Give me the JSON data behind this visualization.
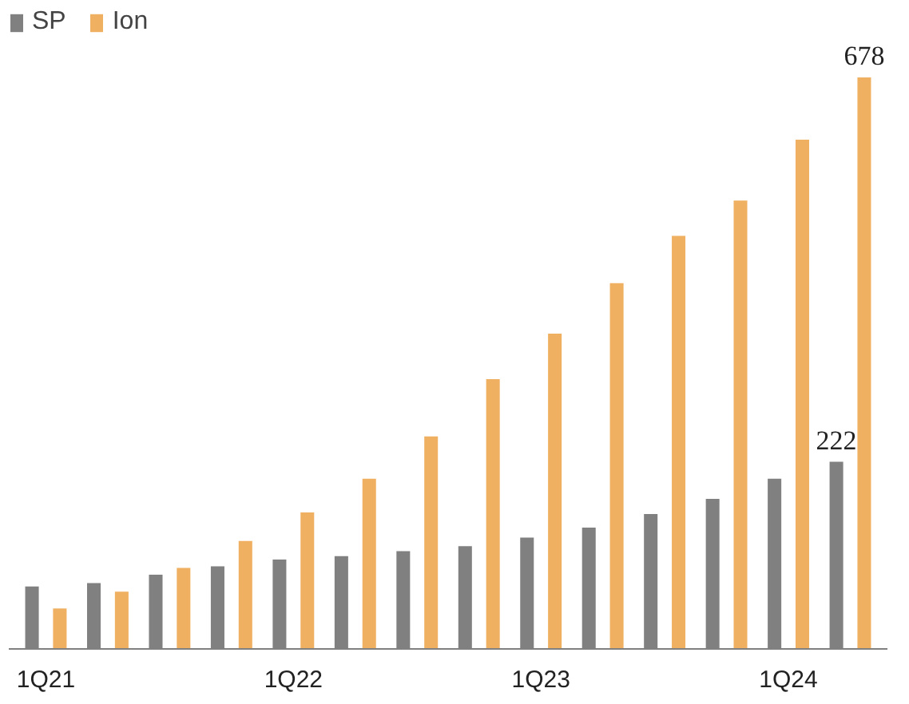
{
  "chart_data": {
    "type": "bar",
    "categories": [
      "1Q21",
      null,
      null,
      null,
      "1Q22",
      null,
      null,
      null,
      "1Q23",
      null,
      null,
      null,
      "1Q24",
      null
    ],
    "series": [
      {
        "name": "SP",
        "color": "#808080",
        "values": [
          74,
          78,
          88,
          98,
          106,
          110,
          116,
          122,
          132,
          144,
          160,
          178,
          202,
          222
        ],
        "value_labels": [
          null,
          null,
          null,
          null,
          null,
          null,
          null,
          null,
          null,
          null,
          null,
          null,
          null,
          "222"
        ]
      },
      {
        "name": "Ion",
        "color": "#f0b062",
        "values": [
          48,
          68,
          96,
          128,
          162,
          202,
          252,
          320,
          374,
          434,
          490,
          532,
          604,
          678
        ],
        "value_labels": [
          null,
          null,
          null,
          null,
          null,
          null,
          null,
          null,
          null,
          null,
          null,
          null,
          null,
          "678"
        ]
      }
    ],
    "legend": "top left",
    "grid": false
  }
}
